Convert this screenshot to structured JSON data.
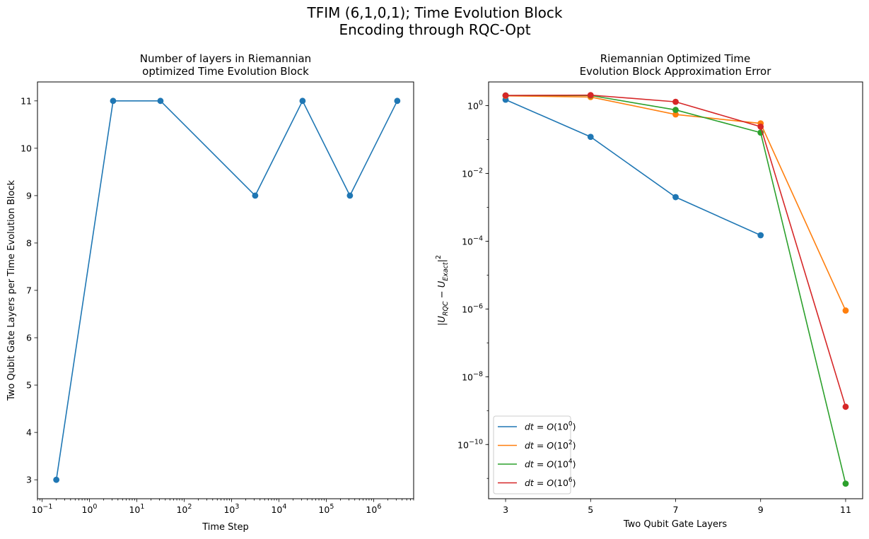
{
  "figure": {
    "suptitle_lines": [
      "TFIM (6,1,0,1); Time Evolution Block",
      "Encoding through RQC-Opt"
    ]
  },
  "chart_data": [
    {
      "type": "line",
      "title_lines": [
        "Number of layers in Riemannian",
        "optimized Time Evolution Block"
      ],
      "xlabel": "Time Step",
      "ylabel": "Two Qubit Gate Layers per Time Evolution Block",
      "xscale": "log",
      "xlim": [
        0.08,
        7000000
      ],
      "ylim": [
        2.6,
        11.4
      ],
      "x_ticks": [
        {
          "base": "10",
          "exp": "−1",
          "value": 0.1
        },
        {
          "base": "10",
          "exp": "0",
          "value": 1
        },
        {
          "base": "10",
          "exp": "1",
          "value": 10
        },
        {
          "base": "10",
          "exp": "2",
          "value": 100
        },
        {
          "base": "10",
          "exp": "3",
          "value": 1000
        },
        {
          "base": "10",
          "exp": "4",
          "value": 10000
        },
        {
          "base": "10",
          "exp": "5",
          "value": 100000
        },
        {
          "base": "10",
          "exp": "6",
          "value": 1000000
        }
      ],
      "y_ticks": [
        "3",
        "4",
        "5",
        "6",
        "7",
        "8",
        "9",
        "10",
        "11"
      ],
      "grid": false,
      "series": [
        {
          "color": "#1f77b4",
          "x": [
            0.2,
            3.16,
            31.6,
            3160,
            31600,
            316000,
            3160000
          ],
          "y": [
            3,
            11,
            11,
            9,
            11,
            9,
            11
          ]
        }
      ]
    },
    {
      "type": "line",
      "title_lines": [
        "Riemannian Optimized Time",
        "Evolution Block Approximation Error"
      ],
      "xlabel": "Two Qubit Gate Layers",
      "ylabel": "|U_RQC − U_Exact|^2",
      "yscale": "log",
      "xlim": [
        2.6,
        11.4
      ],
      "ylim_log10": [
        -11.6,
        0.7
      ],
      "x_ticks": [
        "3",
        "5",
        "7",
        "9",
        "11"
      ],
      "y_ticks": [
        {
          "base": "10",
          "exp": "0",
          "value": 1
        },
        {
          "base": "10",
          "exp": "−2",
          "value": 0.01
        },
        {
          "base": "10",
          "exp": "−4",
          "value": 0.0001
        },
        {
          "base": "10",
          "exp": "−6",
          "value": 1e-06
        },
        {
          "base": "10",
          "exp": "−8",
          "value": 1e-08
        },
        {
          "base": "10",
          "exp": "−10",
          "value": 1e-10
        }
      ],
      "grid": false,
      "legend_position": "lower-left",
      "series": [
        {
          "name": "dt = O(10^0)",
          "legend_exp": "0",
          "color": "#1f77b4",
          "x": [
            3,
            5,
            7,
            9
          ],
          "y": [
            1.5,
            0.12,
            0.002,
            0.00015
          ]
        },
        {
          "name": "dt = O(10^2)",
          "legend_exp": "2",
          "color": "#ff7f0e",
          "x": [
            3,
            5,
            7,
            9,
            11
          ],
          "y": [
            1.95,
            1.8,
            0.55,
            0.3,
            9e-07
          ]
        },
        {
          "name": "dt = O(10^4)",
          "legend_exp": "4",
          "color": "#2ca02c",
          "x": [
            3,
            5,
            7,
            9,
            11
          ],
          "y": [
            2.0,
            2.0,
            0.75,
            0.16,
            7e-12
          ]
        },
        {
          "name": "dt = O(10^6)",
          "legend_exp": "6",
          "color": "#d62728",
          "x": [
            3,
            5,
            7,
            9,
            11
          ],
          "y": [
            2.0,
            2.05,
            1.3,
            0.24,
            1.3e-09
          ]
        }
      ]
    }
  ]
}
